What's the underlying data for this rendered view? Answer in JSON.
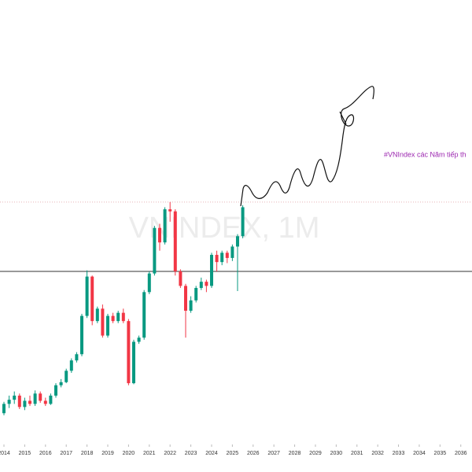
{
  "chart_data": {
    "type": "candlestick",
    "title": "VNINDEX, 1M",
    "annotation": "#VNIndex các Năm tiếp th",
    "x": [
      2014.0,
      2014.25,
      2014.5,
      2014.75,
      2015.0,
      2015.25,
      2015.5,
      2015.75,
      2016.0,
      2016.25,
      2016.5,
      2016.75,
      2017.0,
      2017.25,
      2017.5,
      2017.75,
      2018.0,
      2018.25,
      2018.5,
      2018.75,
      2019.0,
      2019.25,
      2019.5,
      2019.75,
      2020.0,
      2020.25,
      2020.5,
      2020.75,
      2021.0,
      2021.25,
      2021.5,
      2021.75,
      2022.0,
      2022.25,
      2022.5,
      2022.75,
      2023.0,
      2023.25,
      2023.5,
      2023.75,
      2024.0,
      2024.25,
      2024.5,
      2024.75,
      2025.0,
      2025.25,
      2025.5
    ],
    "open": [
      515,
      560,
      580,
      600,
      545,
      575,
      560,
      610,
      575,
      560,
      600,
      650,
      665,
      720,
      770,
      800,
      985,
      1175,
      960,
      1020,
      890,
      985,
      960,
      1000,
      960,
      660,
      860,
      880,
      1100,
      1190,
      1410,
      1340,
      1500,
      1490,
      1200,
      1130,
      1010,
      1060,
      1120,
      1150,
      1130,
      1280,
      1245,
      1290,
      1265,
      1320,
      1370
    ],
    "high": [
      570,
      600,
      620,
      610,
      590,
      600,
      625,
      620,
      590,
      610,
      660,
      680,
      730,
      780,
      810,
      995,
      1205,
      1180,
      1030,
      1040,
      995,
      1000,
      1010,
      1020,
      970,
      870,
      890,
      1110,
      1200,
      1420,
      1430,
      1510,
      1535,
      1500,
      1210,
      1140,
      1080,
      1130,
      1170,
      1160,
      1290,
      1300,
      1300,
      1300,
      1330,
      1380,
      1520
    ],
    "low": [
      505,
      540,
      560,
      535,
      530,
      550,
      550,
      565,
      550,
      555,
      590,
      640,
      660,
      710,
      760,
      790,
      975,
      940,
      950,
      880,
      880,
      950,
      950,
      950,
      650,
      655,
      850,
      870,
      1090,
      1180,
      1300,
      1330,
      1440,
      1180,
      1120,
      880,
      1000,
      1050,
      1110,
      1100,
      1120,
      1200,
      1230,
      1240,
      1250,
      1105,
      1360
    ],
    "close": [
      560,
      580,
      600,
      545,
      575,
      560,
      610,
      575,
      560,
      600,
      650,
      665,
      720,
      770,
      800,
      985,
      1175,
      960,
      1020,
      890,
      985,
      960,
      1000,
      960,
      660,
      860,
      880,
      1100,
      1190,
      1410,
      1340,
      1500,
      1490,
      1200,
      1130,
      1010,
      1060,
      1120,
      1150,
      1130,
      1280,
      1245,
      1290,
      1265,
      1320,
      1370,
      1510
    ],
    "up_color": "#089981",
    "down_color": "#f23645",
    "hlines": [
      {
        "value": 1535,
        "color": "#e8b4b8"
      },
      {
        "value": 1200,
        "color": "#333333"
      }
    ],
    "xlim": [
      2013.81,
      2036.54
    ],
    "xticks": [
      2014,
      2015,
      2016,
      2017,
      2018,
      2019,
      2020,
      2021,
      2022,
      2023,
      2024,
      2025,
      2026,
      2027,
      2028,
      2029,
      2030,
      2031,
      2032,
      2033,
      2034,
      2035,
      2036
    ],
    "ylim": [
      364,
      2511
    ]
  }
}
